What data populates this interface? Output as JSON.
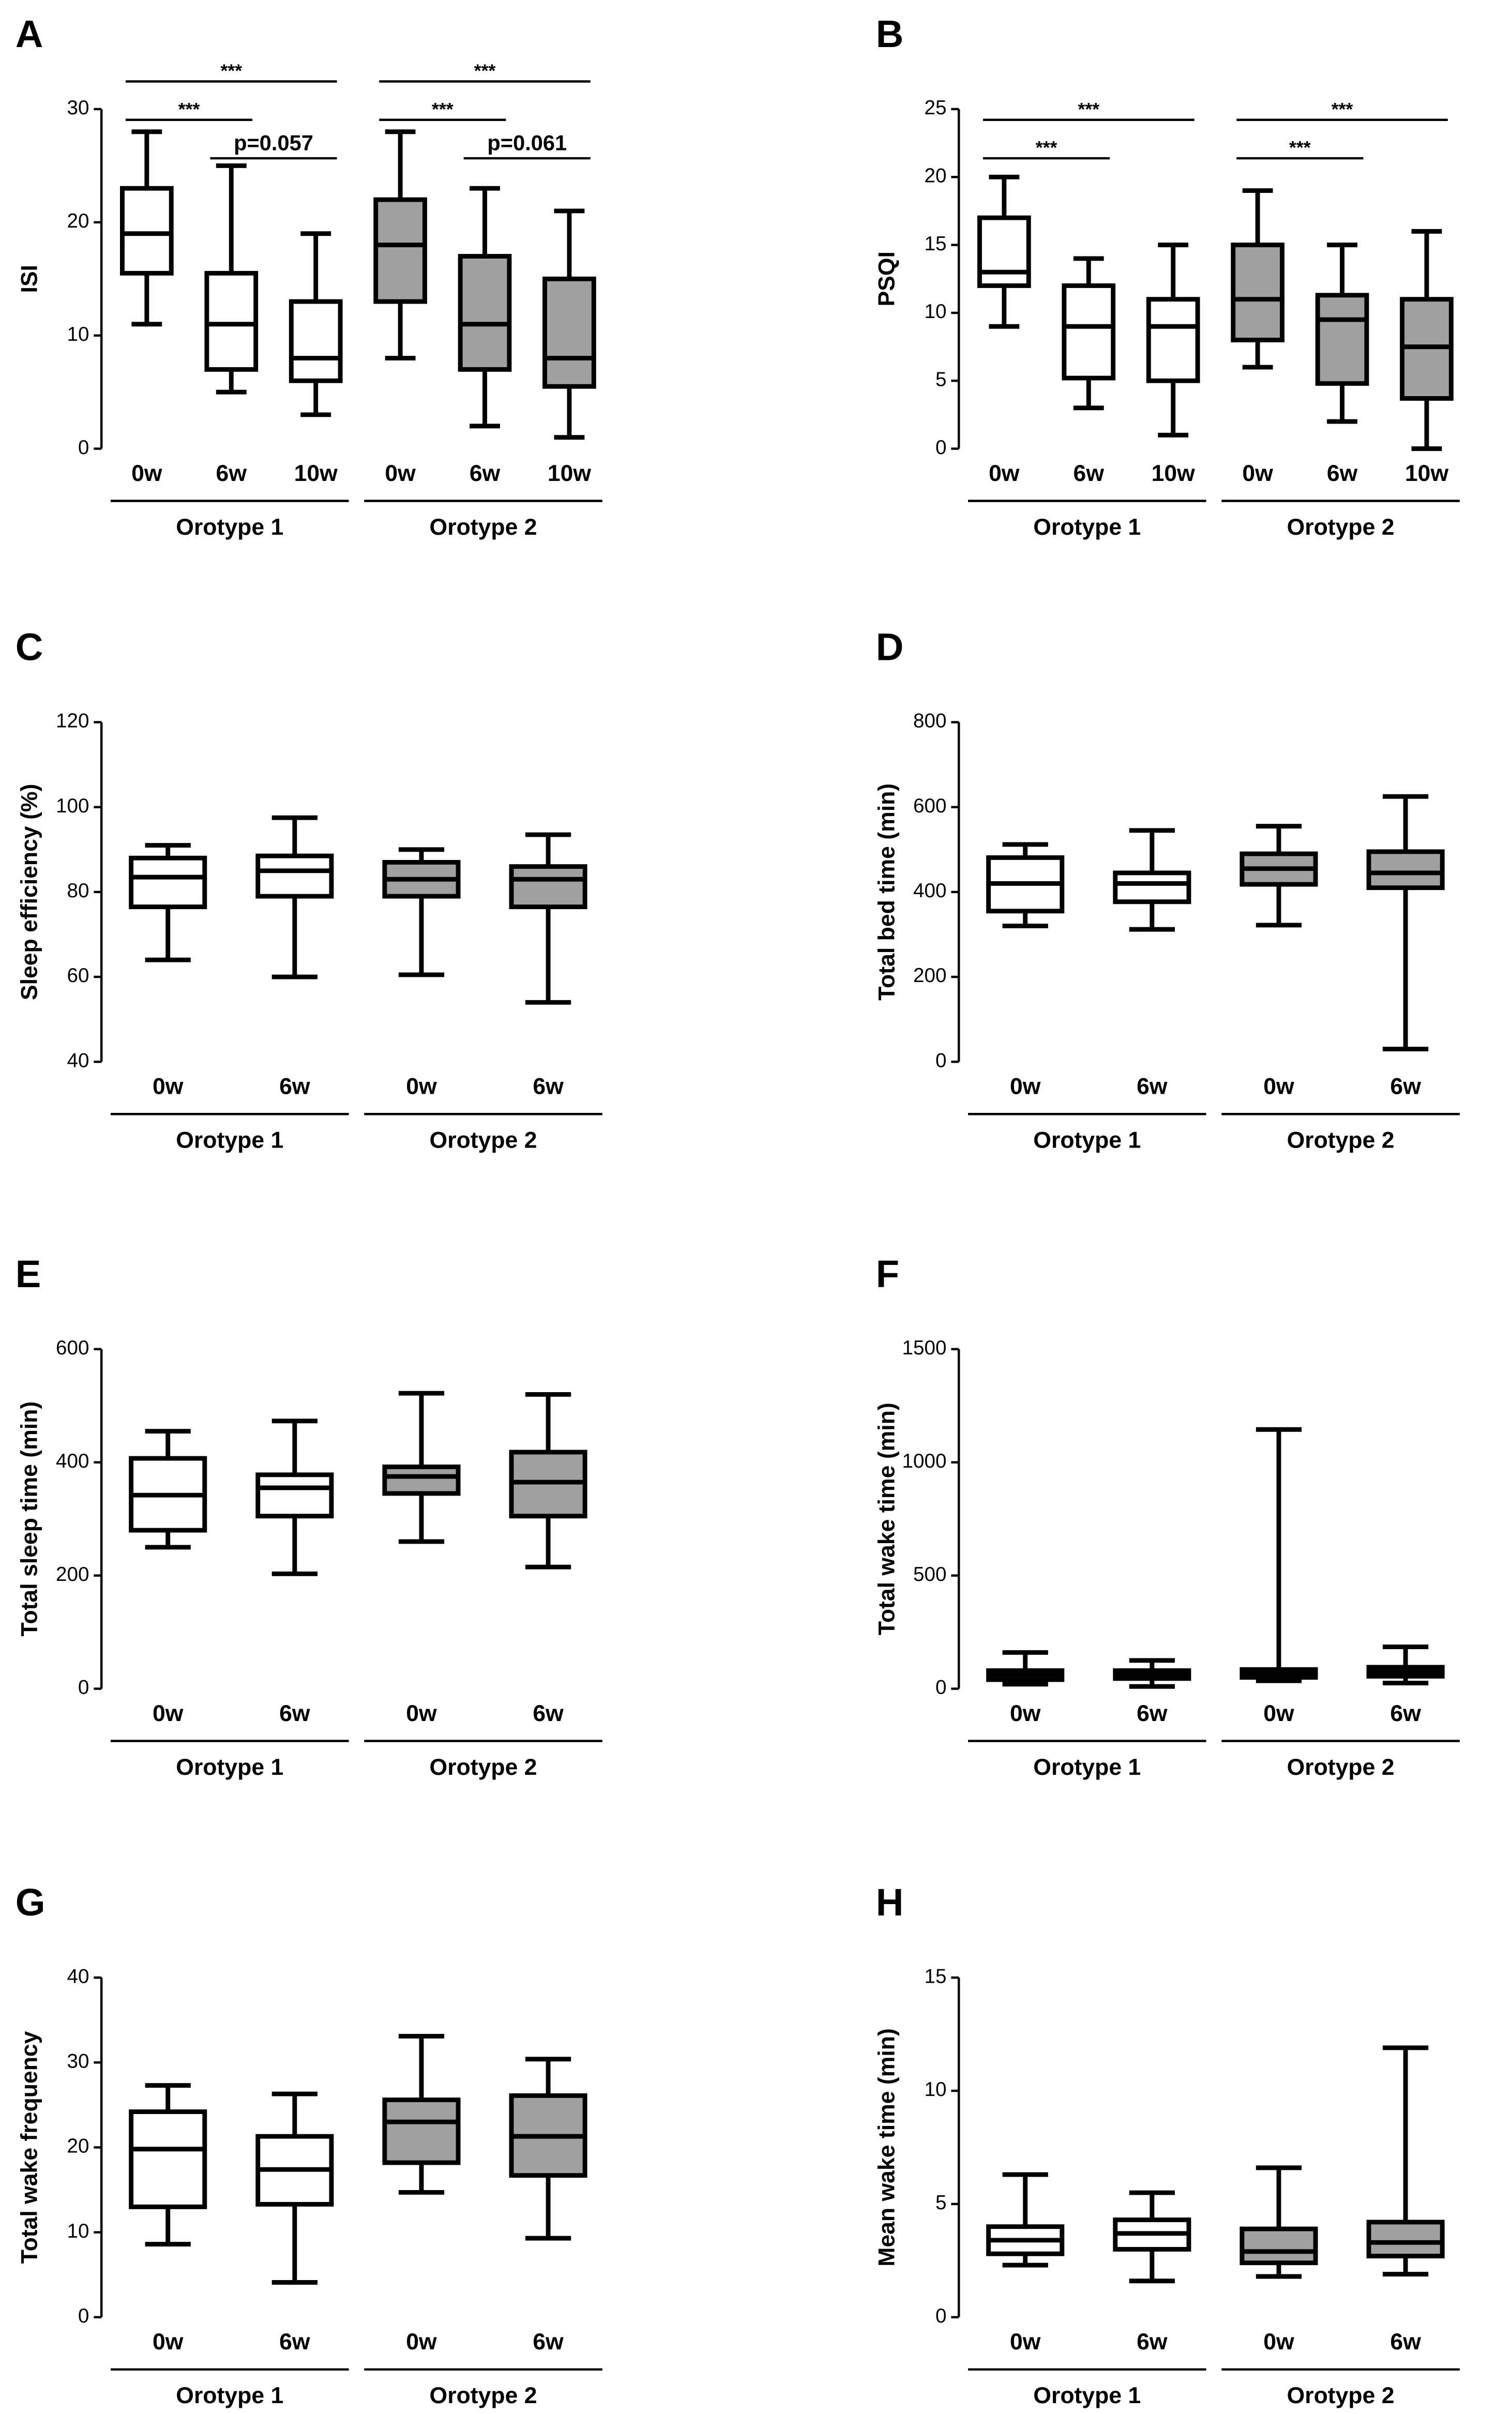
{
  "chart_data": [
    {
      "type": "box",
      "panel": "A",
      "ylabel": "ISI",
      "ylim": [
        0,
        30
      ],
      "yticks": [
        0,
        10,
        20,
        30
      ],
      "series": [
        {
          "name": "Orotype 1",
          "color": "#ffffff",
          "categories": [
            "0w",
            "6w",
            "10w"
          ],
          "boxes": [
            {
              "min": 11,
              "q1": 15.5,
              "median": 19,
              "q3": 23,
              "max": 28
            },
            {
              "min": 5,
              "q1": 7,
              "median": 11,
              "q3": 15.5,
              "max": 25
            },
            {
              "min": 3,
              "q1": 6,
              "median": 8,
              "q3": 13,
              "max": 19
            }
          ]
        },
        {
          "name": "Orotype 2",
          "color": "#a0a0a0",
          "categories": [
            "0w",
            "6w",
            "10w"
          ],
          "boxes": [
            {
              "min": 8,
              "q1": 13,
              "median": 18,
              "q3": 22,
              "max": 28
            },
            {
              "min": 2,
              "q1": 7,
              "median": 11,
              "q3": 17,
              "max": 23
            },
            {
              "min": 1,
              "q1": 5.5,
              "median": 8,
              "q3": 15,
              "max": 21
            }
          ]
        }
      ],
      "comparisons": [
        {
          "label": "p=0.057",
          "from": 1,
          "to": 2
        },
        {
          "label": "***",
          "from": 0,
          "to": 1
        },
        {
          "label": "***",
          "from": 0,
          "to": 2
        },
        {
          "label": "p=0.061",
          "from": 4,
          "to": 5
        },
        {
          "label": "***",
          "from": 3,
          "to": 4
        },
        {
          "label": "***",
          "from": 3,
          "to": 5
        }
      ]
    },
    {
      "type": "box",
      "panel": "B",
      "ylabel": "PSQI",
      "ylim": [
        0,
        25
      ],
      "yticks": [
        0,
        5,
        10,
        15,
        20,
        25
      ],
      "series": [
        {
          "name": "Orotype 1",
          "color": "#ffffff",
          "categories": [
            "0w",
            "6w",
            "10w"
          ],
          "boxes": [
            {
              "min": 9,
              "q1": 12,
              "median": 13,
              "q3": 17,
              "max": 20
            },
            {
              "min": 3,
              "q1": 5.2,
              "median": 9,
              "q3": 12,
              "max": 14
            },
            {
              "min": 1,
              "q1": 5,
              "median": 9,
              "q3": 11,
              "max": 15
            }
          ]
        },
        {
          "name": "Orotype 2",
          "color": "#a0a0a0",
          "categories": [
            "0w",
            "6w",
            "10w"
          ],
          "boxes": [
            {
              "min": 6,
              "q1": 8,
              "median": 11,
              "q3": 15,
              "max": 19
            },
            {
              "min": 2,
              "q1": 4.8,
              "median": 9.5,
              "q3": 11.3,
              "max": 15
            },
            {
              "min": 0,
              "q1": 3.7,
              "median": 7.5,
              "q3": 11,
              "max": 16
            }
          ]
        }
      ],
      "comparisons": [
        {
          "label": "***",
          "from": 0,
          "to": 1
        },
        {
          "label": "***",
          "from": 0,
          "to": 2
        },
        {
          "label": "***",
          "from": 3,
          "to": 4
        },
        {
          "label": "***",
          "from": 3,
          "to": 5
        }
      ]
    },
    {
      "type": "box",
      "panel": "C",
      "ylabel": "Sleep efficiency (%)",
      "ylim": [
        40,
        120
      ],
      "yticks": [
        40,
        60,
        80,
        100,
        120
      ],
      "series": [
        {
          "name": "Orotype 1",
          "color": "#ffffff",
          "categories": [
            "0w",
            "6w"
          ],
          "boxes": [
            {
              "min": 64,
              "q1": 76.5,
              "median": 83.5,
              "q3": 88,
              "max": 91
            },
            {
              "min": 60,
              "q1": 79,
              "median": 85,
              "q3": 88.5,
              "max": 97.5
            }
          ]
        },
        {
          "name": "Orotype 2",
          "color": "#a0a0a0",
          "categories": [
            "0w",
            "6w"
          ],
          "boxes": [
            {
              "min": 60.5,
              "q1": 79,
              "median": 83,
              "q3": 87,
              "max": 90
            },
            {
              "min": 54,
              "q1": 76.5,
              "median": 83,
              "q3": 86,
              "max": 93.5
            }
          ]
        }
      ],
      "comparisons": []
    },
    {
      "type": "box",
      "panel": "D",
      "ylabel": "Total bed time (min)",
      "ylim": [
        0,
        800
      ],
      "yticks": [
        0,
        200,
        400,
        600,
        800
      ],
      "series": [
        {
          "name": "Orotype 1",
          "color": "#ffffff",
          "categories": [
            "0w",
            "6w"
          ],
          "boxes": [
            {
              "min": 320,
              "q1": 355,
              "median": 420,
              "q3": 481,
              "max": 512
            },
            {
              "min": 312,
              "q1": 377,
              "median": 420,
              "q3": 445,
              "max": 545
            }
          ]
        },
        {
          "name": "Orotype 2",
          "color": "#a0a0a0",
          "categories": [
            "0w",
            "6w"
          ],
          "boxes": [
            {
              "min": 322,
              "q1": 418,
              "median": 455,
              "q3": 490,
              "max": 555
            },
            {
              "min": 30,
              "q1": 410,
              "median": 445,
              "q3": 495,
              "max": 625
            }
          ]
        }
      ],
      "comparisons": []
    },
    {
      "type": "box",
      "panel": "E",
      "ylabel": "Total sleep time (min)",
      "ylim": [
        0,
        600
      ],
      "yticks": [
        0,
        200,
        400,
        600
      ],
      "series": [
        {
          "name": "Orotype 1",
          "color": "#ffffff",
          "categories": [
            "0w",
            "6w"
          ],
          "boxes": [
            {
              "min": 250,
              "q1": 280,
              "median": 342,
              "q3": 407,
              "max": 455
            },
            {
              "min": 203,
              "q1": 305,
              "median": 355,
              "q3": 378,
              "max": 473
            }
          ]
        },
        {
          "name": "Orotype 2",
          "color": "#a0a0a0",
          "categories": [
            "0w",
            "6w"
          ],
          "boxes": [
            {
              "min": 260,
              "q1": 345,
              "median": 375,
              "q3": 392,
              "max": 522
            },
            {
              "min": 215,
              "q1": 305,
              "median": 365,
              "q3": 418,
              "max": 520
            }
          ]
        }
      ],
      "comparisons": []
    },
    {
      "type": "box",
      "panel": "F",
      "ylabel": "Total wake time (min)",
      "ylim": [
        0,
        1500
      ],
      "yticks": [
        0,
        500,
        1000,
        1500
      ],
      "series": [
        {
          "name": "Orotype 1",
          "color": "#ffffff",
          "categories": [
            "0w",
            "6w"
          ],
          "boxes": [
            {
              "min": 20,
              "q1": 40,
              "median": 60,
              "q3": 80,
              "max": 160
            },
            {
              "min": 10,
              "q1": 45,
              "median": 65,
              "q3": 80,
              "max": 125
            }
          ]
        },
        {
          "name": "Orotype 2",
          "color": "#a0a0a0",
          "categories": [
            "0w",
            "6w"
          ],
          "boxes": [
            {
              "min": 35,
              "q1": 50,
              "median": 65,
              "q3": 85,
              "max": 1145
            },
            {
              "min": 25,
              "q1": 55,
              "median": 75,
              "q3": 95,
              "max": 185
            }
          ]
        }
      ],
      "comparisons": []
    },
    {
      "type": "box",
      "panel": "G",
      "ylabel": "Total wake frequency",
      "ylim": [
        0,
        40
      ],
      "yticks": [
        0,
        10,
        20,
        30,
        40
      ],
      "series": [
        {
          "name": "Orotype 1",
          "color": "#ffffff",
          "categories": [
            "0w",
            "6w"
          ],
          "boxes": [
            {
              "min": 8.6,
              "q1": 13,
              "median": 19.8,
              "q3": 24.2,
              "max": 27.3
            },
            {
              "min": 4.1,
              "q1": 13.3,
              "median": 17.4,
              "q3": 21.3,
              "max": 26.3
            }
          ]
        },
        {
          "name": "Orotype 2",
          "color": "#a0a0a0",
          "categories": [
            "0w",
            "6w"
          ],
          "boxes": [
            {
              "min": 14.7,
              "q1": 18.2,
              "median": 23,
              "q3": 25.6,
              "max": 33.1
            },
            {
              "min": 9.3,
              "q1": 16.7,
              "median": 21.3,
              "q3": 26.1,
              "max": 30.4
            }
          ]
        }
      ],
      "comparisons": []
    },
    {
      "type": "box",
      "panel": "H",
      "ylabel": "Mean wake time (min)",
      "ylim": [
        0,
        15
      ],
      "yticks": [
        0,
        5,
        10,
        15
      ],
      "series": [
        {
          "name": "Orotype 1",
          "color": "#ffffff",
          "categories": [
            "0w",
            "6w"
          ],
          "boxes": [
            {
              "min": 2.3,
              "q1": 2.8,
              "median": 3.4,
              "q3": 4.0,
              "max": 6.3
            },
            {
              "min": 1.6,
              "q1": 3.0,
              "median": 3.7,
              "q3": 4.3,
              "max": 5.5
            }
          ]
        },
        {
          "name": "Orotype 2",
          "color": "#a0a0a0",
          "categories": [
            "0w",
            "6w"
          ],
          "boxes": [
            {
              "min": 1.8,
              "q1": 2.4,
              "median": 2.9,
              "q3": 3.9,
              "max": 6.6
            },
            {
              "min": 1.9,
              "q1": 2.7,
              "median": 3.3,
              "q3": 4.2,
              "max": 11.9
            }
          ]
        }
      ],
      "comparisons": []
    }
  ]
}
